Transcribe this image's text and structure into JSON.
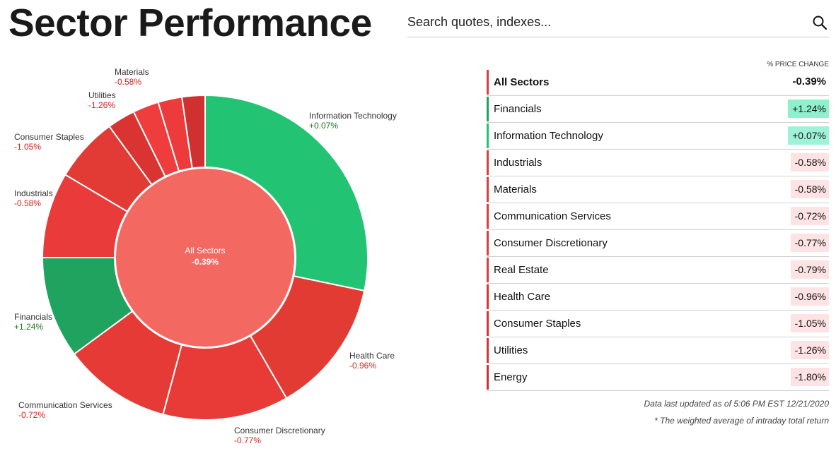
{
  "header": {
    "title": "Sector Performance",
    "search_placeholder": "Search quotes, indexes..."
  },
  "chart_data": {
    "type": "pie",
    "center_label": "All Sectors",
    "center_value": "-0.39%",
    "slices": [
      {
        "name": "Information Technology",
        "value": "+0.07%",
        "weight": 28.5,
        "color": "#22c473",
        "label_color": "#1a7a1a"
      },
      {
        "name": "Health Care",
        "value": "-0.96%",
        "weight": 13.5,
        "color": "#e23b34",
        "label_color": "#e02020"
      },
      {
        "name": "Consumer Discretionary",
        "value": "-0.77%",
        "weight": 12.6,
        "color": "#e83a37",
        "label_color": "#e02020"
      },
      {
        "name": "Communication Services",
        "value": "-0.72%",
        "weight": 10.8,
        "color": "#e53a36",
        "label_color": "#e02020"
      },
      {
        "name": "Financials",
        "value": "+1.24%",
        "weight": 10.2,
        "color": "#1fa35f",
        "label_color": "#1a7a1a"
      },
      {
        "name": "Industrials",
        "value": "-0.58%",
        "weight": 8.6,
        "color": "#ea3b3b",
        "label_color": "#e02020"
      },
      {
        "name": "Consumer Staples",
        "value": "-1.05%",
        "weight": 6.5,
        "color": "#e23a35",
        "label_color": "#e02020"
      },
      {
        "name": "Utilities",
        "value": "-1.26%",
        "weight": 2.8,
        "color": "#d93432",
        "label_color": "#e02020"
      },
      {
        "name": "Materials",
        "value": "-0.58%",
        "weight": 2.6,
        "color": "#ef3c3c",
        "label_color": "#e02020"
      },
      {
        "name": "",
        "value": "",
        "weight": 2.4,
        "color": "#ed3a3a",
        "label_color": "#e02020"
      },
      {
        "name": "",
        "value": "",
        "weight": 2.3,
        "color": "#cf3030",
        "label_color": "#e02020"
      }
    ]
  },
  "table": {
    "header": "% PRICE CHANGE",
    "rows": [
      {
        "name": "All Sectors",
        "value": "-0.39%",
        "bar": "#e03c3c",
        "bg": "#ffffff"
      },
      {
        "name": "Financials",
        "value": "+1.24%",
        "bar": "#1fa35f",
        "bg": "#8ef0cc"
      },
      {
        "name": "Information Technology",
        "value": "+0.07%",
        "bar": "#22c473",
        "bg": "#9ff2d8"
      },
      {
        "name": "Industrials",
        "value": "-0.58%",
        "bar": "#e03c3c",
        "bg": "#fde3e3"
      },
      {
        "name": "Materials",
        "value": "-0.58%",
        "bar": "#e03c3c",
        "bg": "#fde3e3"
      },
      {
        "name": "Communication Services",
        "value": "-0.72%",
        "bar": "#e03c3c",
        "bg": "#fde3e3"
      },
      {
        "name": "Consumer Discretionary",
        "value": "-0.77%",
        "bar": "#e03c3c",
        "bg": "#fde3e3"
      },
      {
        "name": "Real Estate",
        "value": "-0.79%",
        "bar": "#e03c3c",
        "bg": "#fde3e3"
      },
      {
        "name": "Health Care",
        "value": "-0.96%",
        "bar": "#d93432",
        "bg": "#fde3e3"
      },
      {
        "name": "Consumer Staples",
        "value": "-1.05%",
        "bar": "#d93432",
        "bg": "#fde3e3"
      },
      {
        "name": "Utilities",
        "value": "-1.26%",
        "bar": "#d93432",
        "bg": "#fde3e3"
      },
      {
        "name": "Energy",
        "value": "-1.80%",
        "bar": "#cf3030",
        "bg": "#fde3e3"
      }
    ]
  },
  "footer": {
    "updated": "Data last updated as of 5:06 PM EST 12/21/2020",
    "note": "* The weighted average of intraday total return"
  }
}
